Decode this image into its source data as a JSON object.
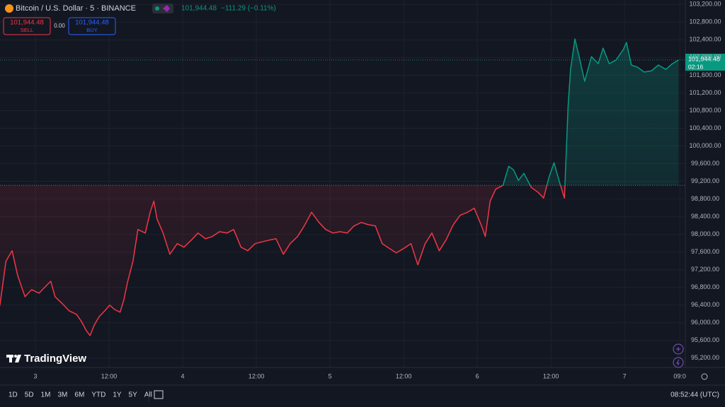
{
  "header": {
    "symbol": "Bitcoin / U.S. Dollar · 5 · BINANCE",
    "price": "101,944.48",
    "change": "−111.29 (−0.11%)",
    "sell_price": "101,944.48",
    "sell_label": "SELL",
    "spread": "0.00",
    "buy_price": "101,944.48",
    "buy_label": "BUY"
  },
  "price_tag": {
    "price": "101,944.48",
    "countdown": "02:16"
  },
  "logo": "TradingView",
  "toolbar": {
    "ranges": [
      "1D",
      "5D",
      "1M",
      "3M",
      "6M",
      "YTD",
      "1Y",
      "5Y",
      "All"
    ],
    "clock": "08:52:44 (UTC)"
  },
  "chart_data": {
    "type": "line",
    "x": [
      -5.8,
      -4.8,
      -3.8,
      -2.9,
      -1.7,
      -0.6,
      0.6,
      1.7,
      2.5,
      3.2,
      4.4,
      5.5,
      6.7,
      7.5,
      8.3,
      8.9,
      9.6,
      10.4,
      11.3,
      12.1,
      12.9,
      13.8,
      14.4,
      15.0,
      15.9,
      16.7,
      17.9,
      18.7,
      19.3,
      19.8,
      20.8,
      21.9,
      23.1,
      24.2,
      25.4,
      26.5,
      27.7,
      28.8,
      30.0,
      31.2,
      32.3,
      33.5,
      34.6,
      35.8,
      36.9,
      38.1,
      39.2,
      40.4,
      41.5,
      42.7,
      43.8,
      45.0,
      46.2,
      47.3,
      48.5,
      49.6,
      50.8,
      51.9,
      53.1,
      54.2,
      55.4,
      56.5,
      57.7,
      58.8,
      60.0,
      61.2,
      62.3,
      63.5,
      64.6,
      65.8,
      66.9,
      68.1,
      69.2,
      70.4,
      71.5,
      72.7,
      73.3,
      74.1,
      75.0,
      76.2,
      77.1,
      77.9,
      78.7,
      79.6,
      80.8,
      81.9,
      82.8,
      83.7,
      84.5,
      85.4,
      86.2,
      86.8,
      87.2,
      87.9,
      88.6,
      89.5,
      90.6,
      91.7,
      92.5,
      93.5,
      94.6,
      95.8,
      96.3,
      97.1,
      98.1,
      99.2,
      100.4,
      101.5,
      102.7,
      103.8,
      104.8
    ],
    "values": [
      96380,
      97390,
      97630,
      97070,
      96590,
      96750,
      96670,
      96830,
      96940,
      96590,
      96430,
      96270,
      96190,
      96030,
      95820,
      95710,
      95950,
      96140,
      96270,
      96400,
      96300,
      96240,
      96510,
      96910,
      97390,
      98110,
      98030,
      98500,
      98750,
      98350,
      98030,
      97550,
      97790,
      97710,
      97870,
      98030,
      97900,
      97950,
      98060,
      98030,
      98110,
      97710,
      97630,
      97790,
      97830,
      97870,
      97900,
      97550,
      97790,
      97950,
      98190,
      98500,
      98270,
      98110,
      98030,
      98060,
      98030,
      98190,
      98270,
      98220,
      98190,
      97790,
      97680,
      97580,
      97680,
      97790,
      97310,
      97790,
      98030,
      97630,
      97870,
      98220,
      98430,
      98500,
      98590,
      98190,
      97950,
      98750,
      99020,
      99110,
      99540,
      99460,
      99220,
      99380,
      99060,
      98950,
      98820,
      99300,
      99620,
      99180,
      98820,
      100900,
      101730,
      102420,
      102020,
      101460,
      102020,
      101860,
      102210,
      101860,
      101940,
      102180,
      102340,
      101830,
      101780,
      101670,
      101700,
      101830,
      101730,
      101860,
      101944.48
    ],
    "baseline": 99110,
    "color_above": "#089981",
    "color_below": "#f23645",
    "grid": true,
    "xlim": [
      -5.77,
      105.9
    ],
    "xticks": [
      {
        "value": 0,
        "label": "3"
      },
      {
        "value": 12,
        "label": "12:00"
      },
      {
        "value": 24,
        "label": "4"
      },
      {
        "value": 36,
        "label": "12:00"
      },
      {
        "value": 48,
        "label": "5"
      },
      {
        "value": 60,
        "label": "12:00"
      },
      {
        "value": 72,
        "label": "6"
      },
      {
        "value": 84,
        "label": "12:00"
      },
      {
        "value": 96,
        "label": "7"
      },
      {
        "value": 105,
        "label": "09:0"
      }
    ],
    "ylim": [
      94990,
      103300
    ],
    "yticks": [
      {
        "value": 103200,
        "label": "103,200.00"
      },
      {
        "value": 102800,
        "label": "102,800.00"
      },
      {
        "value": 102400,
        "label": "102,400.00"
      },
      {
        "value": 102000,
        "label": "102,000.00"
      },
      {
        "value": 101600,
        "label": "101,600.00"
      },
      {
        "value": 101200,
        "label": "101,200.00"
      },
      {
        "value": 100800,
        "label": "100,800.00"
      },
      {
        "value": 100400,
        "label": "100,400.00"
      },
      {
        "value": 100000,
        "label": "100,000.00"
      },
      {
        "value": 99600,
        "label": "99,600.00"
      },
      {
        "value": 99200,
        "label": "99,200.00"
      },
      {
        "value": 98800,
        "label": "98,800.00"
      },
      {
        "value": 98400,
        "label": "98,400.00"
      },
      {
        "value": 98000,
        "label": "98,000.00"
      },
      {
        "value": 97600,
        "label": "97,600.00"
      },
      {
        "value": 97200,
        "label": "97,200.00"
      },
      {
        "value": 96800,
        "label": "96,800.00"
      },
      {
        "value": 96400,
        "label": "96,400.00"
      },
      {
        "value": 96000,
        "label": "96,000.00"
      },
      {
        "value": 95600,
        "label": "95,600.00"
      },
      {
        "value": 95200,
        "label": "95,200.00"
      }
    ]
  }
}
